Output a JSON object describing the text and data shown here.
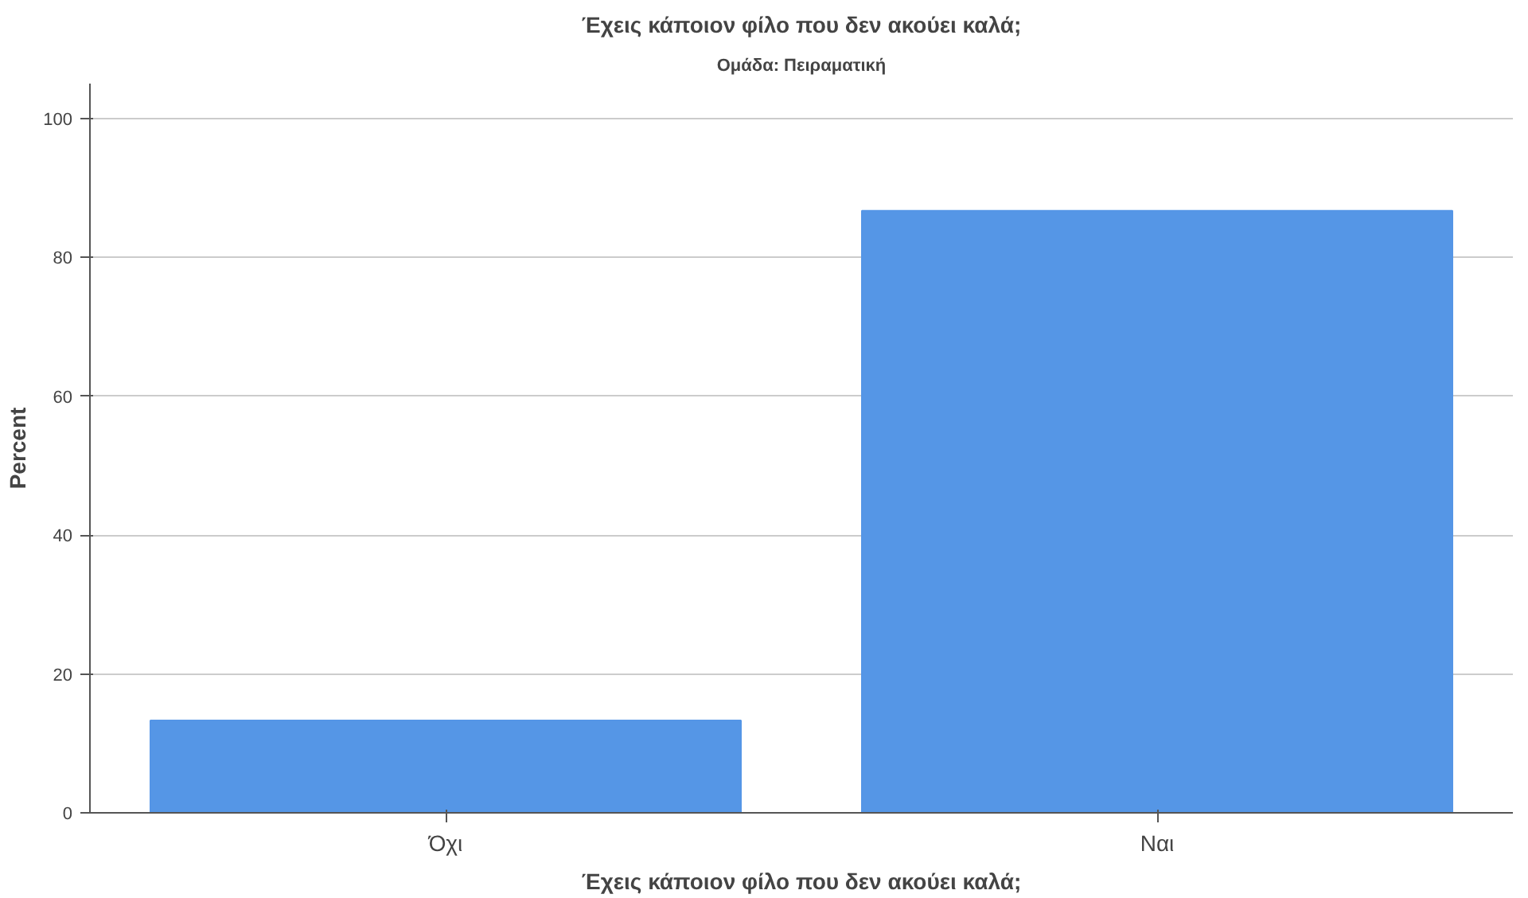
{
  "chart_data": {
    "type": "bar",
    "title": "Έχεις κάποιον φίλο που δεν ακούει καλά;",
    "subtitle": "Ομάδα: Πειραματική",
    "xlabel": "Έχεις κάποιον φίλο που δεν ακούει καλά;",
    "ylabel": "Percent",
    "categories": [
      "Όχι",
      "Ναι"
    ],
    "values": [
      13.3,
      86.7
    ],
    "color": "#5596e6",
    "ylim": [
      0,
      105
    ],
    "yticks": [
      0,
      20,
      40,
      60,
      80,
      100
    ],
    "grid": "y"
  }
}
